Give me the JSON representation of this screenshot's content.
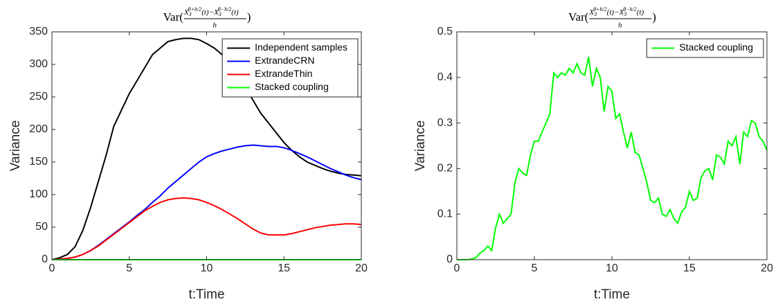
{
  "chart_data": [
    {
      "type": "line",
      "title": {
        "text": "Var(",
        "numerator": [
          "X",
          "3",
          "θ+h/2",
          "(t)−",
          "X",
          "3",
          "θ−h/2",
          "(t)"
        ],
        "denominator": "h",
        "close": ")"
      },
      "x_label": "t:Time",
      "y_label": "Variance",
      "x": [
        0,
        0.5,
        1,
        1.5,
        2,
        2.5,
        3,
        3.5,
        4,
        4.5,
        5,
        5.5,
        6,
        6.5,
        7,
        7.5,
        8,
        8.5,
        9,
        9.5,
        10,
        10.5,
        11,
        11.5,
        12,
        12.5,
        13,
        13.5,
        14,
        14.5,
        15,
        15.5,
        16,
        16.5,
        17,
        17.5,
        18,
        18.5,
        19,
        19.5,
        20
      ],
      "series": [
        {
          "name": "Independent samples",
          "color": "#000000",
          "values": [
            0,
            3,
            8,
            20,
            45,
            80,
            120,
            160,
            205,
            230,
            255,
            275,
            295,
            315,
            325,
            335,
            338,
            340,
            340,
            338,
            332,
            325,
            315,
            300,
            285,
            265,
            245,
            225,
            210,
            195,
            180,
            168,
            158,
            150,
            145,
            140,
            136,
            133,
            131,
            130,
            129
          ]
        },
        {
          "name": "ExtrandeCRN",
          "color": "#0000ff",
          "values": [
            0,
            1,
            2,
            4,
            8,
            14,
            22,
            31,
            40,
            49,
            58,
            68,
            77,
            88,
            98,
            110,
            120,
            130,
            140,
            150,
            158,
            163,
            167,
            170,
            173,
            175,
            176,
            175,
            174,
            174,
            172,
            168,
            163,
            158,
            152,
            146,
            140,
            135,
            130,
            126,
            123
          ]
        },
        {
          "name": "ExtrandeThin",
          "color": "#ff0000",
          "values": [
            0,
            1,
            2,
            4,
            8,
            14,
            21,
            30,
            39,
            48,
            57,
            66,
            75,
            82,
            88,
            92,
            94,
            95,
            94,
            92,
            88,
            83,
            77,
            70,
            63,
            55,
            47,
            41,
            38,
            38,
            38,
            40,
            43,
            46,
            49,
            51,
            53,
            54,
            55,
            55,
            54
          ]
        },
        {
          "name": "Stacked coupling",
          "color": "#00ff00",
          "values": [
            0,
            0,
            0,
            0,
            0,
            0,
            0,
            0,
            0,
            0,
            0,
            0,
            0,
            0,
            0,
            0,
            0,
            0,
            0,
            0,
            0,
            0,
            0,
            0,
            0,
            0,
            0,
            0,
            0,
            0,
            0,
            0,
            0,
            0,
            0,
            0,
            0,
            0,
            0,
            0,
            0
          ]
        }
      ],
      "xlim": [
        0,
        20
      ],
      "xticks": [
        0,
        5,
        10,
        15,
        20
      ],
      "ylim": [
        0,
        350
      ],
      "yticks": [
        0,
        50,
        100,
        150,
        200,
        250,
        300,
        350
      ],
      "legend": "top-right"
    },
    {
      "type": "line",
      "title": {
        "text": "Var(",
        "numerator": [
          "X",
          "3",
          "θ+h/2",
          "(t)−",
          "X",
          "3",
          "θ−h/2",
          "(t)"
        ],
        "denominator": "h",
        "close": ")"
      },
      "x_label": "t:Time",
      "y_label": "Variance",
      "x": [
        0,
        0.25,
        0.5,
        0.75,
        1,
        1.25,
        1.5,
        1.75,
        2,
        2.25,
        2.5,
        2.75,
        3,
        3.25,
        3.5,
        3.75,
        4,
        4.25,
        4.5,
        4.75,
        5,
        5.25,
        5.5,
        5.75,
        6,
        6.25,
        6.5,
        6.75,
        7,
        7.25,
        7.5,
        7.75,
        8,
        8.25,
        8.5,
        8.75,
        9,
        9.25,
        9.5,
        9.75,
        10,
        10.25,
        10.5,
        10.75,
        11,
        11.25,
        11.5,
        11.75,
        12,
        12.25,
        12.5,
        12.75,
        13,
        13.25,
        13.5,
        13.75,
        14,
        14.25,
        14.5,
        14.75,
        15,
        15.25,
        15.5,
        15.75,
        16,
        16.25,
        16.5,
        16.75,
        17,
        17.25,
        17.5,
        17.75,
        18,
        18.25,
        18.5,
        18.75,
        19,
        19.25,
        19.5,
        19.75,
        20
      ],
      "series": [
        {
          "name": "Stacked coupling",
          "color": "#00ff00",
          "values": [
            0,
            0,
            0,
            0,
            0.002,
            0.005,
            0.015,
            0.02,
            0.03,
            0.02,
            0.07,
            0.1,
            0.08,
            0.09,
            0.1,
            0.17,
            0.2,
            0.19,
            0.185,
            0.23,
            0.26,
            0.26,
            0.28,
            0.3,
            0.32,
            0.41,
            0.4,
            0.41,
            0.405,
            0.42,
            0.41,
            0.43,
            0.41,
            0.405,
            0.445,
            0.38,
            0.42,
            0.4,
            0.325,
            0.38,
            0.37,
            0.31,
            0.32,
            0.28,
            0.245,
            0.28,
            0.235,
            0.23,
            0.2,
            0.17,
            0.13,
            0.125,
            0.135,
            0.1,
            0.095,
            0.11,
            0.09,
            0.08,
            0.105,
            0.115,
            0.15,
            0.13,
            0.135,
            0.18,
            0.195,
            0.2,
            0.175,
            0.23,
            0.225,
            0.21,
            0.26,
            0.25,
            0.27,
            0.21,
            0.28,
            0.27,
            0.305,
            0.3,
            0.27,
            0.26,
            0.24
          ]
        }
      ],
      "xlim": [
        0,
        20
      ],
      "xticks": [
        0,
        5,
        10,
        15,
        20
      ],
      "ylim": [
        0,
        0.5
      ],
      "yticks": [
        0,
        0.1,
        0.2,
        0.3,
        0.4,
        0.5
      ],
      "legend": "top-right"
    }
  ]
}
